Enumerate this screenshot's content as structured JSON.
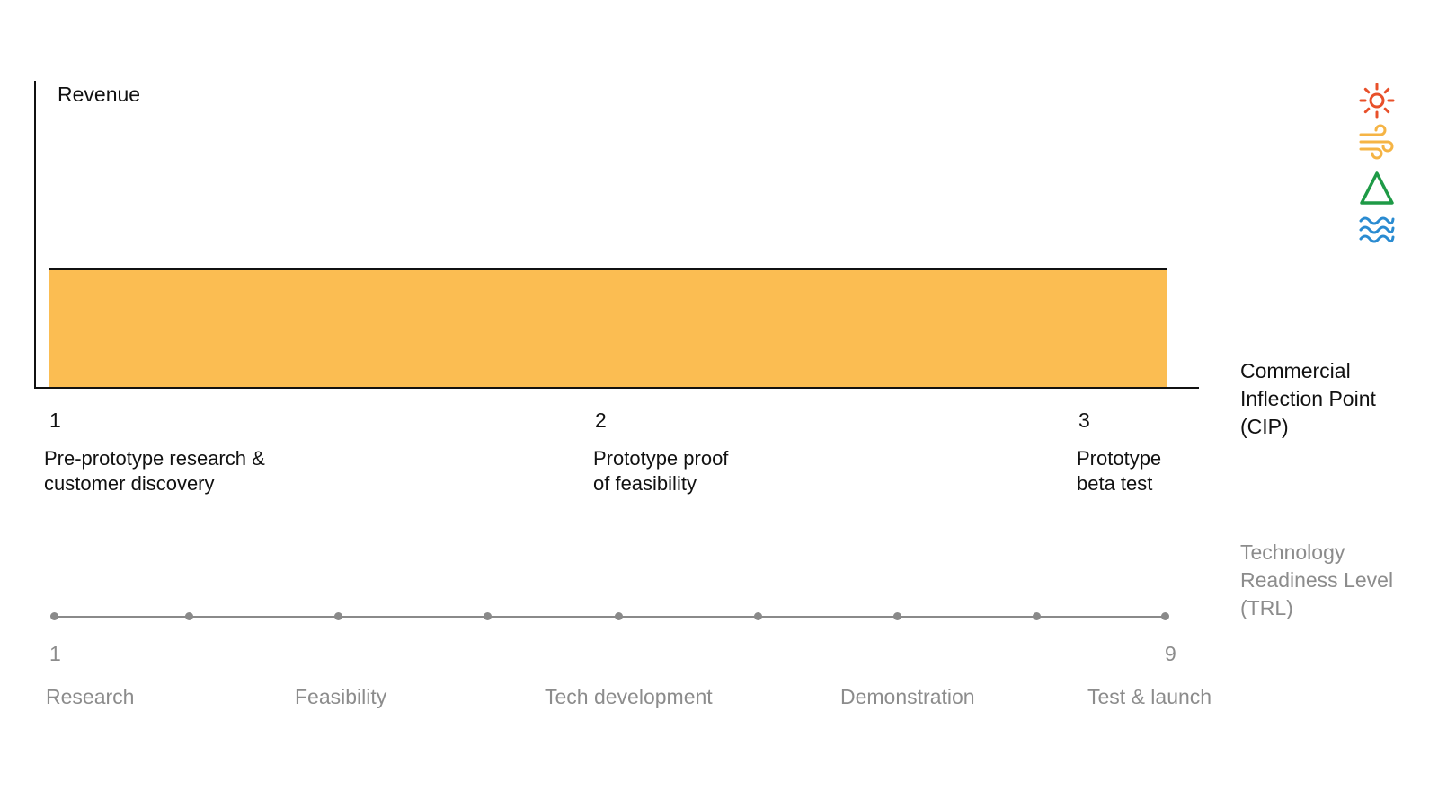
{
  "revenue_label": "Revenue",
  "cip": {
    "title": "Commercial\nInflection Point\n(CIP)",
    "stages": [
      {
        "number": "1",
        "label": "Pre-prototype research &\ncustomer discovery"
      },
      {
        "number": "2",
        "label": "Prototype proof\nof feasibility"
      },
      {
        "number": "3",
        "label": "Prototype\nbeta test"
      }
    ]
  },
  "trl": {
    "title": "Technology\nReadiness Level\n(TRL)",
    "start_label": "1",
    "end_label": "9",
    "levels": [
      1,
      2,
      3,
      4,
      5,
      6,
      7,
      8,
      9
    ],
    "phases": [
      "Research",
      "Feasibility",
      "Tech development",
      "Demonstration",
      "Test & launch"
    ]
  },
  "icons": [
    {
      "name": "sun-icon",
      "color": "#e8502a"
    },
    {
      "name": "wind-icon",
      "color": "#f5b445"
    },
    {
      "name": "mountain-icon",
      "color": "#1e9a46"
    },
    {
      "name": "water-waves-icon",
      "color": "#2a8bd1"
    }
  ],
  "colors": {
    "revenue_fill": "#fbbd52",
    "trl_gray": "#8a8a8a"
  }
}
